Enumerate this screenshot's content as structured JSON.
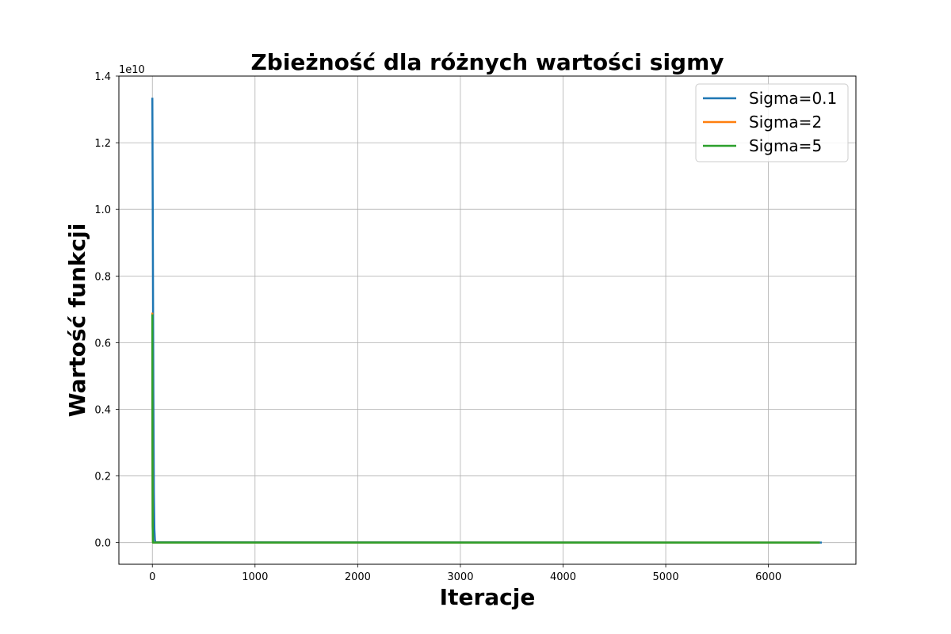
{
  "chart_data": {
    "type": "line",
    "title": "Zbieżność dla różnych wartości sigmy",
    "xlabel": "Iteracje",
    "ylabel": "Wartość funkcji",
    "offset_label": "1e10",
    "xlim": [
      -326,
      6852
    ],
    "ylim": [
      -0.065,
      1.4
    ],
    "y_scale_multiplier": 10000000000,
    "xticks": [
      0,
      1000,
      2000,
      3000,
      4000,
      5000,
      6000
    ],
    "xtick_labels": [
      "0",
      "1000",
      "2000",
      "3000",
      "4000",
      "5000",
      "6000"
    ],
    "yticks": [
      0.0,
      0.2,
      0.4,
      0.6,
      0.8,
      1.0,
      1.2,
      1.4
    ],
    "ytick_labels": [
      "0.0",
      "0.2",
      "0.4",
      "0.6",
      "0.8",
      "1.0",
      "1.2",
      "1.4"
    ],
    "grid": true,
    "legend_position": "top-right",
    "series": [
      {
        "name": "Sigma=0.1",
        "color": "#1f77b4",
        "x": [
          0,
          5,
          10,
          15,
          20,
          25,
          30,
          6520
        ],
        "y": [
          1.335,
          0.9,
          0.45,
          0.15,
          0.04,
          0.008,
          0.001,
          0.0
        ]
      },
      {
        "name": "Sigma=2",
        "color": "#ff7f0e",
        "x": [
          0,
          1,
          3,
          6,
          6500
        ],
        "y": [
          0.69,
          0.3,
          0.05,
          0.0,
          0.0
        ]
      },
      {
        "name": "Sigma=5",
        "color": "#2ca02c",
        "x": [
          0,
          1,
          3,
          6,
          6500
        ],
        "y": [
          0.685,
          0.3,
          0.05,
          0.0,
          0.0
        ]
      }
    ]
  }
}
